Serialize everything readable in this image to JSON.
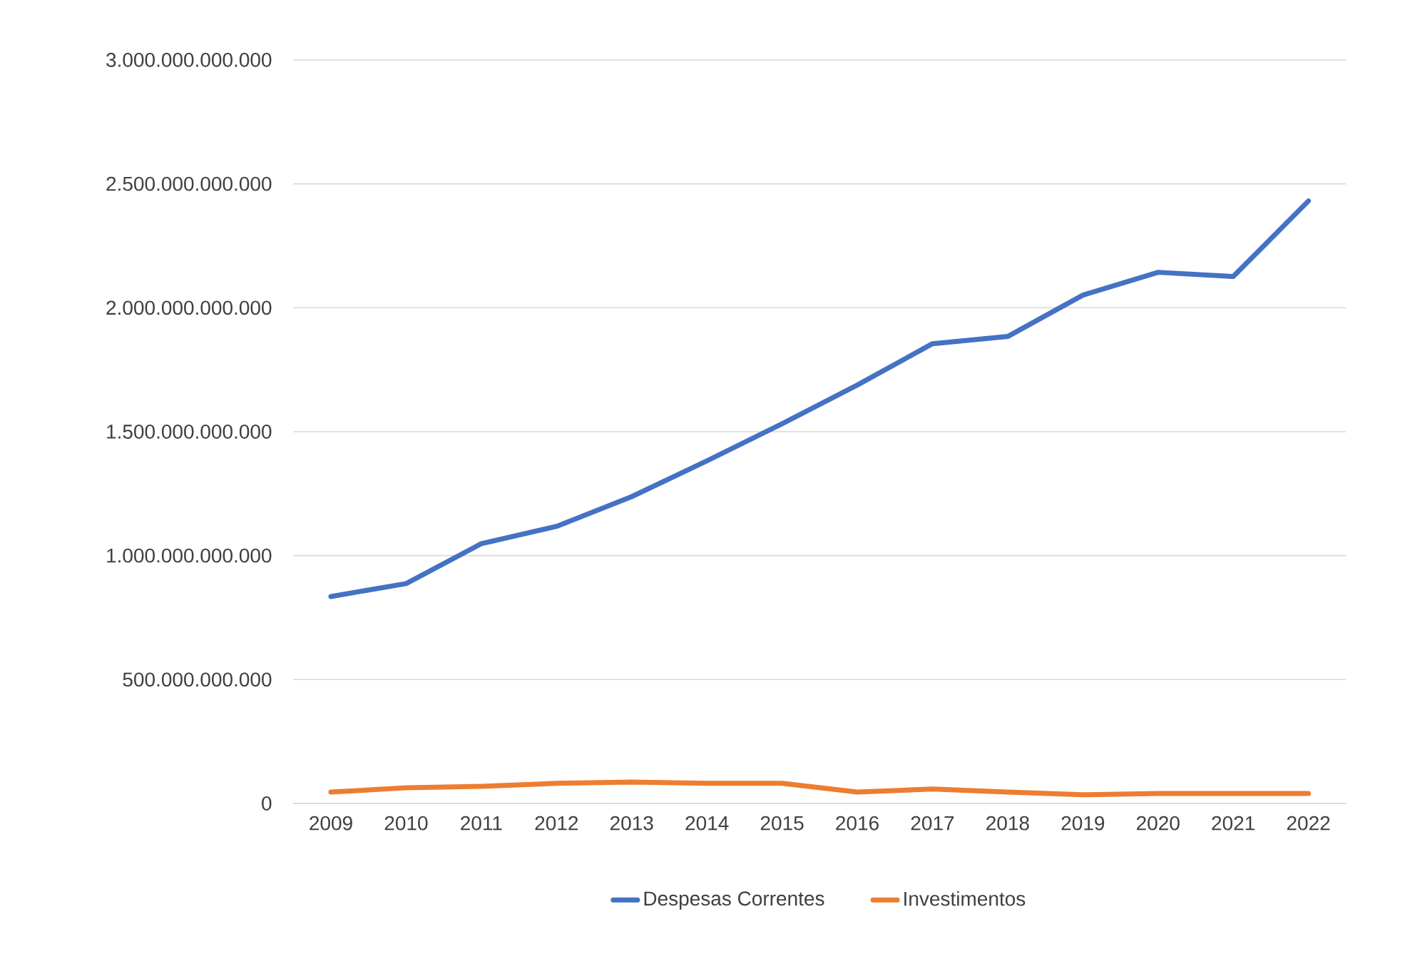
{
  "chart_data": {
    "type": "line",
    "categories": [
      "2009",
      "2010",
      "2011",
      "2012",
      "2013",
      "2014",
      "2015",
      "2016",
      "2017",
      "2018",
      "2019",
      "2020",
      "2021",
      "2022"
    ],
    "series": [
      {
        "name": "Despesas Correntes",
        "color": "#4472c4",
        "values": [
          835000000000,
          887000000000,
          1048000000000,
          1118000000000,
          1238000000000,
          1382000000000,
          1532000000000,
          1688000000000,
          1855000000000,
          1884000000000,
          2051000000000,
          2143000000000,
          2126000000000,
          2431000000000
        ]
      },
      {
        "name": "Investimentos",
        "color": "#ed7d31",
        "values": [
          46000000000,
          63000000000,
          69000000000,
          81000000000,
          86000000000,
          81000000000,
          81000000000,
          46000000000,
          58000000000,
          46000000000,
          35000000000,
          40000000000,
          40000000000,
          40000000000
        ]
      }
    ],
    "ylim": [
      0,
      3000000000000
    ],
    "yticks": [
      0,
      {
        "value": 500000000000,
        "label": "500.000.000.000"
      },
      {
        "value": 1000000000000,
        "label": "1.000.000.000.000"
      },
      {
        "value": 1500000000000,
        "label": "1.500.000.000.000"
      },
      {
        "value": 2000000000000,
        "label": "2.000.000.000.000"
      },
      {
        "value": 2500000000000,
        "label": "2.500.000.000.000"
      },
      {
        "value": 3000000000000,
        "label": "3.000.000.000.000"
      }
    ],
    "grid": "y",
    "legend": "bottom"
  }
}
